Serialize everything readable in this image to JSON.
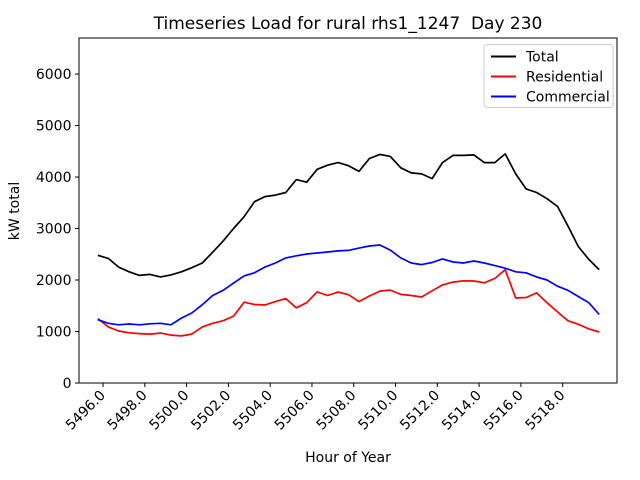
{
  "figure": {
    "background": "#ffffff",
    "frame_color": "#000000"
  },
  "chart_data": {
    "type": "line",
    "title": "Timeseries Load for rural rhs1_1247  Day 230",
    "xlabel": "Hour of Year",
    "ylabel": "kW total",
    "xlim": [
      5494.85,
      5520.6
    ],
    "ylim": [
      0,
      6700
    ],
    "grid": false,
    "legend_position": "upper right",
    "x_ticks": [
      5496,
      5498,
      5500,
      5502,
      5504,
      5506,
      5508,
      5510,
      5512,
      5514,
      5516,
      5518
    ],
    "x_tick_labels": [
      "5496.0",
      "5498.0",
      "5500.0",
      "5502.0",
      "5504.0",
      "5506.0",
      "5508.0",
      "5510.0",
      "5512.0",
      "5514.0",
      "5516.0",
      "5518.0"
    ],
    "x_tick_rotation": 45,
    "y_ticks": [
      0,
      1000,
      2000,
      3000,
      4000,
      5000,
      6000
    ],
    "y_tick_labels": [
      "0",
      "1000",
      "2000",
      "3000",
      "4000",
      "5000",
      "6000"
    ],
    "x": [
      5495.75,
      5496.25,
      5496.75,
      5497.25,
      5497.75,
      5498.25,
      5498.75,
      5499.25,
      5499.75,
      5500.25,
      5500.75,
      5501.25,
      5501.75,
      5502.25,
      5502.75,
      5503.25,
      5503.75,
      5504.25,
      5504.75,
      5505.25,
      5505.75,
      5506.25,
      5506.75,
      5507.25,
      5507.75,
      5508.25,
      5508.75,
      5509.25,
      5509.75,
      5510.25,
      5510.75,
      5511.25,
      5511.75,
      5512.25,
      5512.75,
      5513.25,
      5513.75,
      5514.25,
      5514.75,
      5515.25,
      5515.75,
      5516.25,
      5516.75,
      5517.25,
      5517.75,
      5518.25,
      5518.75,
      5519.25,
      5519.75
    ],
    "series": [
      {
        "name": "Total",
        "color": "#000000",
        "values": [
          2480,
          2420,
          2250,
          2160,
          2090,
          2110,
          2060,
          2100,
          2160,
          2240,
          2330,
          2540,
          2760,
          3000,
          3230,
          3520,
          3620,
          3650,
          3700,
          3950,
          3900,
          4150,
          4230,
          4280,
          4220,
          4110,
          4360,
          4440,
          4400,
          4180,
          4080,
          4060,
          3970,
          4280,
          4420,
          4420,
          4430,
          4280,
          4280,
          4450,
          4060,
          3770,
          3700,
          3580,
          3430,
          3050,
          2650,
          2400,
          2200
        ]
      },
      {
        "name": "Residential",
        "color": "#ff0000",
        "values": [
          1250,
          1090,
          1010,
          975,
          960,
          950,
          970,
          930,
          915,
          950,
          1090,
          1160,
          1210,
          1300,
          1570,
          1525,
          1515,
          1580,
          1640,
          1460,
          1560,
          1770,
          1700,
          1765,
          1715,
          1580,
          1690,
          1785,
          1805,
          1720,
          1700,
          1670,
          1790,
          1905,
          1960,
          1985,
          1980,
          1945,
          2030,
          2200,
          1650,
          1660,
          1750,
          1560,
          1380,
          1210,
          1140,
          1050,
          990
        ]
      },
      {
        "name": "Commercial",
        "color": "#0000ff",
        "values": [
          1230,
          1160,
          1130,
          1145,
          1130,
          1150,
          1160,
          1130,
          1260,
          1360,
          1520,
          1700,
          1800,
          1940,
          2080,
          2140,
          2250,
          2330,
          2430,
          2470,
          2505,
          2525,
          2545,
          2565,
          2575,
          2620,
          2660,
          2680,
          2580,
          2430,
          2330,
          2300,
          2340,
          2410,
          2350,
          2330,
          2370,
          2330,
          2280,
          2230,
          2160,
          2140,
          2060,
          2000,
          1880,
          1800,
          1680,
          1560,
          1330
        ]
      }
    ]
  }
}
